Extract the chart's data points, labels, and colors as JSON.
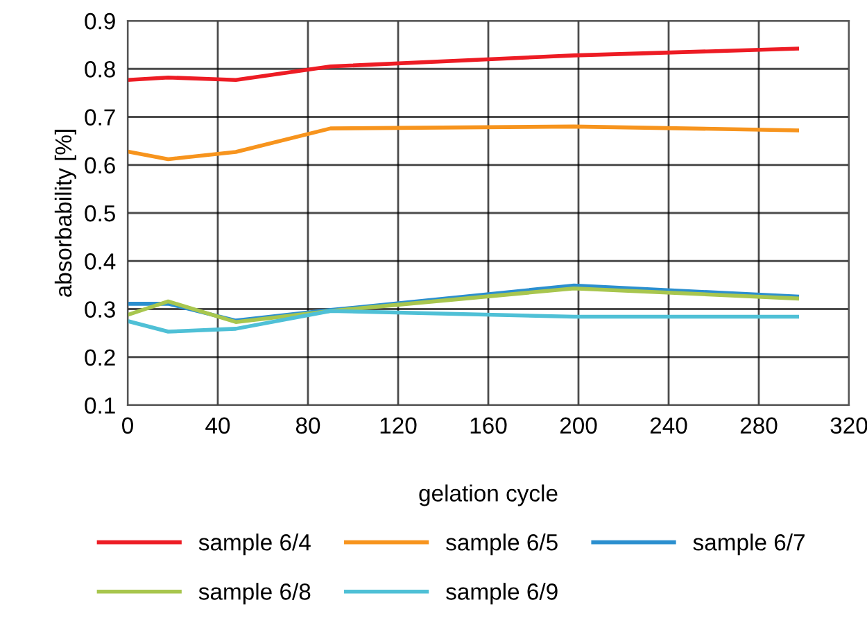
{
  "chart_data": {
    "type": "line",
    "xlabel": "gelation cycle",
    "ylabel": "absorbability [%]",
    "x": [
      0,
      18,
      48,
      90,
      198,
      297
    ],
    "series": [
      {
        "name": "sample 6/4",
        "color": "#ed1c24",
        "values": [
          0.777,
          0.782,
          0.777,
          0.805,
          0.828,
          0.842
        ]
      },
      {
        "name": "sample 6/5",
        "color": "#f7941d",
        "values": [
          0.628,
          0.612,
          0.627,
          0.676,
          0.68,
          0.672
        ]
      },
      {
        "name": "sample 6/7",
        "color": "#2b8fcf",
        "values": [
          0.311,
          0.311,
          0.276,
          0.298,
          0.349,
          0.326
        ]
      },
      {
        "name": "sample 6/8",
        "color": "#a8c64e",
        "values": [
          0.288,
          0.316,
          0.273,
          0.296,
          0.343,
          0.322
        ]
      },
      {
        "name": "sample 6/9",
        "color": "#4fc0d6",
        "values": [
          0.275,
          0.253,
          0.259,
          0.296,
          0.284,
          0.284
        ]
      }
    ],
    "xlim": [
      0,
      320
    ],
    "xticks": [
      0,
      40,
      80,
      120,
      160,
      200,
      240,
      280,
      320
    ],
    "ylim": [
      0.1,
      0.9
    ],
    "yticks": [
      0.1,
      0.2,
      0.3,
      0.4,
      0.5,
      0.6,
      0.7,
      0.8,
      0.9
    ],
    "grid": true,
    "legend": "bottom",
    "marker": "none",
    "line_style": "solid"
  }
}
